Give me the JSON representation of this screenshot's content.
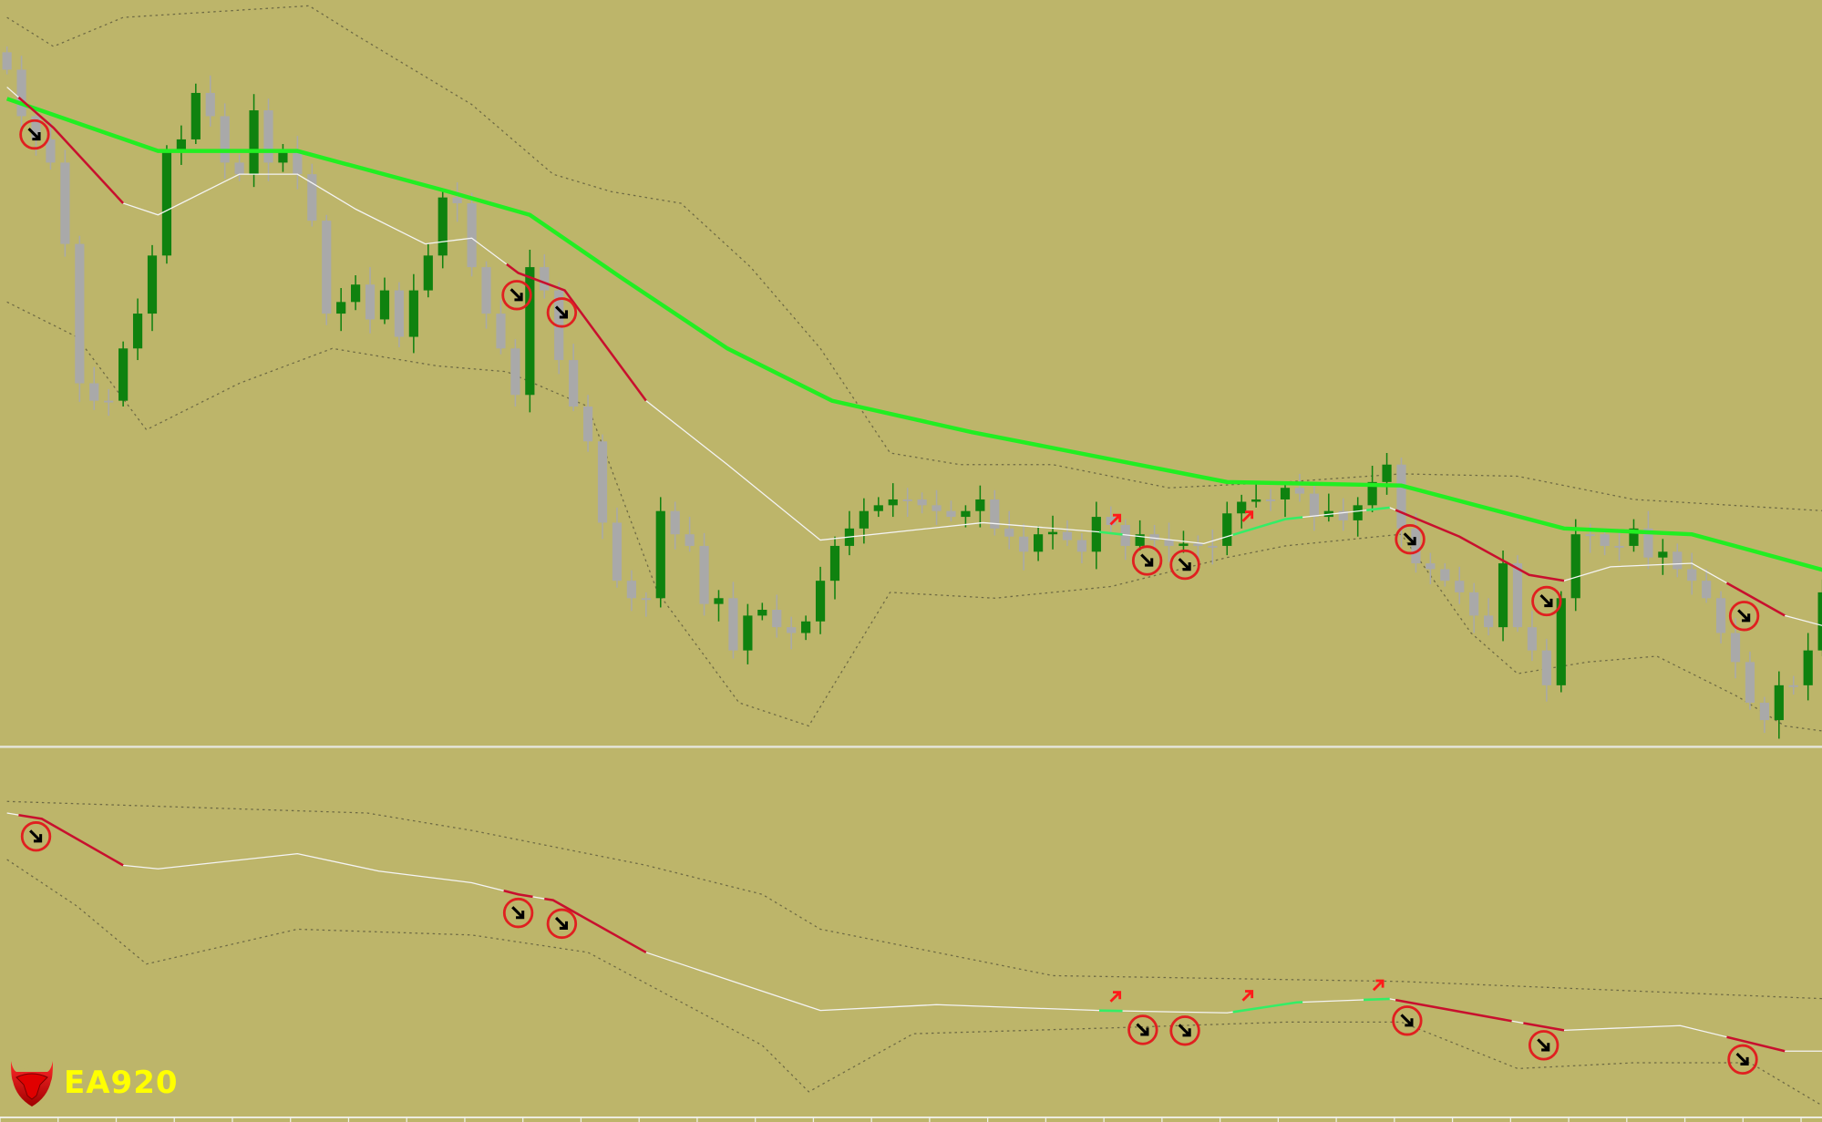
{
  "colors": {
    "background": "#bdb56a",
    "bull_candle": "#0f820f",
    "bear_candle": "#a9a9a9",
    "slow_ma": "#22ee22",
    "fast_ma": "#f4f4f4",
    "down_segment": "#c8102e",
    "up_segment": "#33ee66",
    "band": "#6e6a44",
    "signal_circle": "#e02020",
    "signal_arrow_down": "#000000",
    "signal_arrow_up": "#ff1a1a",
    "separator": "#e4e4d8"
  },
  "logo": {
    "text": "EA920",
    "icon": "bull-shield-icon"
  },
  "chart_data": {
    "type": "candlestick",
    "title": "",
    "grid": false,
    "panes": [
      {
        "name": "",
        "candles_close": [
          940,
          900,
          880,
          860,
          790,
          670,
          655,
          655,
          700,
          730,
          780,
          870,
          880,
          920,
          900,
          860,
          850,
          905,
          860,
          870,
          850,
          810,
          730,
          740,
          755,
          725,
          750,
          710,
          750,
          780,
          830,
          825,
          770,
          730,
          700,
          660,
          770,
          750,
          690,
          650,
          620,
          550,
          500,
          485,
          485,
          560,
          540,
          530,
          480,
          485,
          440,
          470,
          475,
          460,
          455,
          465,
          500,
          530,
          545,
          560,
          565,
          570,
          570,
          565,
          560,
          555,
          560,
          570,
          545,
          538,
          525,
          540,
          542,
          535,
          525,
          555,
          548,
          530,
          540,
          535,
          530,
          532,
          530,
          530,
          558,
          568,
          570,
          570,
          580,
          575,
          555,
          560,
          552,
          565,
          585,
          600,
          545,
          515,
          510,
          500,
          490,
          470,
          460,
          515,
          460,
          440,
          410,
          485,
          540,
          540,
          530,
          530,
          545,
          520,
          525,
          510,
          500,
          485,
          455,
          430,
          395,
          380,
          410,
          410,
          440,
          490
        ],
        "slow_ma": [
          [
            0,
            915
          ],
          [
            10.4,
            870
          ],
          [
            20,
            870
          ],
          [
            30.4,
            835
          ],
          [
            36,
            815
          ],
          [
            42.4,
            760
          ],
          [
            49.6,
            700
          ],
          [
            56.8,
            655
          ],
          [
            66.4,
            628
          ],
          [
            84,
            585
          ],
          [
            96,
            582
          ],
          [
            107.2,
            545
          ],
          [
            116,
            540
          ],
          [
            125.4,
            508
          ]
        ],
        "fast_ma": [
          [
            0,
            925
          ],
          [
            3.2,
            890
          ],
          [
            8,
            825
          ],
          [
            10.4,
            815
          ],
          [
            16,
            850
          ],
          [
            20,
            850
          ],
          [
            24,
            820
          ],
          [
            28.8,
            790
          ],
          [
            32,
            795
          ],
          [
            35.2,
            765
          ],
          [
            38.4,
            750
          ],
          [
            44,
            655
          ],
          [
            49.6,
            600
          ],
          [
            56,
            535
          ],
          [
            67.2,
            550
          ],
          [
            75.2,
            542
          ],
          [
            82.4,
            532
          ],
          [
            88,
            553
          ],
          [
            95.2,
            563
          ],
          [
            100,
            538
          ],
          [
            104.8,
            505
          ],
          [
            107.2,
            500
          ],
          [
            110.4,
            512
          ],
          [
            116,
            515
          ],
          [
            122.4,
            470
          ],
          [
            125.4,
            460
          ]
        ],
        "fast_ma_segments": [
          {
            "from": 0.8,
            "to": 8,
            "trend": "down"
          },
          {
            "from": 34.4,
            "to": 44,
            "trend": "down"
          },
          {
            "from": 75.2,
            "to": 76.8,
            "trend": "up"
          },
          {
            "from": 84.4,
            "to": 89.2,
            "trend": "up"
          },
          {
            "from": 93.6,
            "to": 95.2,
            "trend": "up"
          },
          {
            "from": 95.6,
            "to": 107.2,
            "trend": "down"
          },
          {
            "from": 118.4,
            "to": 122.4,
            "trend": "down"
          }
        ],
        "upper_band": [
          [
            0,
            985
          ],
          [
            3.2,
            960
          ],
          [
            8,
            985
          ],
          [
            20.8,
            995
          ],
          [
            24,
            970
          ],
          [
            32,
            910
          ],
          [
            37.6,
            850
          ],
          [
            41.6,
            835
          ],
          [
            46.4,
            825
          ],
          [
            51.2,
            770
          ],
          [
            56,
            700
          ],
          [
            60.8,
            610
          ],
          [
            65.6,
            600
          ],
          [
            72,
            600
          ],
          [
            80,
            580
          ],
          [
            88,
            585
          ],
          [
            96,
            592
          ],
          [
            104,
            590
          ],
          [
            112,
            570
          ],
          [
            125.4,
            560
          ]
        ],
        "lower_band": [
          [
            0,
            740
          ],
          [
            4.8,
            710
          ],
          [
            9.6,
            630
          ],
          [
            16,
            670
          ],
          [
            22.4,
            700
          ],
          [
            29.6,
            685
          ],
          [
            34.4,
            680
          ],
          [
            40,
            650
          ],
          [
            44.8,
            490
          ],
          [
            50.4,
            395
          ],
          [
            55.2,
            375
          ],
          [
            60.8,
            490
          ],
          [
            68,
            485
          ],
          [
            76,
            495
          ],
          [
            84,
            520
          ],
          [
            88,
            530
          ],
          [
            96,
            540
          ],
          [
            100.8,
            455
          ],
          [
            104,
            420
          ],
          [
            108.8,
            430
          ],
          [
            113.6,
            435
          ],
          [
            119.2,
            400
          ],
          [
            122.4,
            375
          ],
          [
            125.4,
            370
          ]
        ],
        "signals_down": [
          1.9,
          35.1,
          38.2,
          78.5,
          81.1,
          96.6,
          106,
          119.6
        ],
        "signals_up": [
          76.3,
          85.4
        ]
      },
      {
        "name": "",
        "line": [
          [
            0,
            300
          ],
          [
            2.4,
            295
          ],
          [
            8,
            255
          ],
          [
            10.4,
            252
          ],
          [
            20,
            265
          ],
          [
            25.6,
            250
          ],
          [
            32,
            240
          ],
          [
            35.2,
            230
          ],
          [
            37.6,
            225
          ],
          [
            44,
            180
          ],
          [
            56,
            130
          ],
          [
            64,
            135
          ],
          [
            75.2,
            130
          ],
          [
            84,
            128
          ],
          [
            88.8,
            137
          ],
          [
            95.2,
            140
          ],
          [
            104,
            120
          ],
          [
            107.2,
            113
          ],
          [
            115.2,
            117
          ],
          [
            122.4,
            95
          ],
          [
            125.4,
            95
          ]
        ],
        "line_segments": [
          {
            "from": 0.8,
            "to": 8,
            "trend": "down"
          },
          {
            "from": 34.2,
            "to": 36.2,
            "trend": "down"
          },
          {
            "from": 37,
            "to": 44,
            "trend": "down"
          },
          {
            "from": 75.2,
            "to": 76.8,
            "trend": "up"
          },
          {
            "from": 84.4,
            "to": 89.2,
            "trend": "up"
          },
          {
            "from": 93.4,
            "to": 95.2,
            "trend": "up"
          },
          {
            "from": 95.6,
            "to": 103.6,
            "trend": "down"
          },
          {
            "from": 104.4,
            "to": 107.2,
            "trend": "down"
          },
          {
            "from": 118.4,
            "to": 122.4,
            "trend": "down"
          }
        ],
        "upper_band": [
          [
            0,
            310
          ],
          [
            24.8,
            300
          ],
          [
            32,
            285
          ],
          [
            44,
            255
          ],
          [
            52,
            230
          ],
          [
            56,
            200
          ],
          [
            72,
            160
          ],
          [
            96,
            155
          ],
          [
            125.4,
            140
          ]
        ],
        "lower_band": [
          [
            0,
            260
          ],
          [
            4.8,
            220
          ],
          [
            9.6,
            170
          ],
          [
            20,
            200
          ],
          [
            32,
            195
          ],
          [
            40,
            180
          ],
          [
            52,
            100
          ],
          [
            55.2,
            60
          ],
          [
            62.4,
            110
          ],
          [
            76,
            115
          ],
          [
            88,
            120
          ],
          [
            96,
            120
          ],
          [
            104,
            80
          ],
          [
            112,
            85
          ],
          [
            120,
            85
          ],
          [
            125.4,
            45
          ]
        ],
        "signals_down": [
          2,
          35.2,
          38.2,
          78.2,
          81.1,
          96.4,
          105.8,
          119.5
        ],
        "signals_up": [
          76.3,
          85.4,
          94.4
        ]
      }
    ]
  }
}
